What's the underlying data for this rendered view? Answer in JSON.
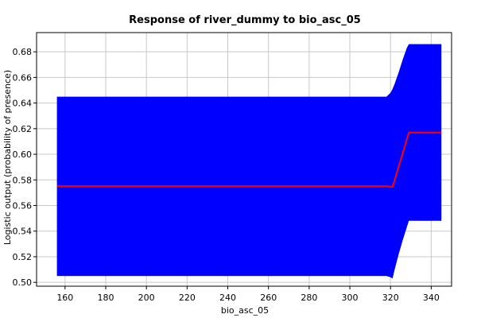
{
  "chart_data": {
    "type": "line",
    "title": "Response of river_dummy to bio_asc_05",
    "xlabel": "bio_asc_05",
    "ylabel": "Logistic output (probability of presence)",
    "xlim": [
      146,
      350
    ],
    "ylim": [
      0.497,
      0.695
    ],
    "xticks": [
      160,
      180,
      200,
      220,
      240,
      260,
      280,
      300,
      320,
      340
    ],
    "yticks": [
      0.5,
      0.52,
      0.54,
      0.56,
      0.58,
      0.6,
      0.62,
      0.64,
      0.66,
      0.68
    ],
    "grid": true,
    "series": [
      {
        "role": "mean",
        "color": "#ff0000",
        "x": [
          156,
          318,
          321,
          329,
          345
        ],
        "y": [
          0.575,
          0.575,
          0.5745,
          0.617,
          0.617
        ]
      },
      {
        "role": "band",
        "color": "#0000ff",
        "x": [
          156,
          318,
          320,
          321,
          322,
          324,
          326,
          328,
          329,
          330,
          345
        ],
        "upper": [
          0.645,
          0.645,
          0.648,
          0.651,
          0.655,
          0.664,
          0.674,
          0.683,
          0.686,
          0.686,
          0.686
        ],
        "lower": [
          0.505,
          0.505,
          0.504,
          0.503,
          0.51,
          0.522,
          0.533,
          0.543,
          0.548,
          0.548,
          0.548
        ]
      }
    ]
  }
}
